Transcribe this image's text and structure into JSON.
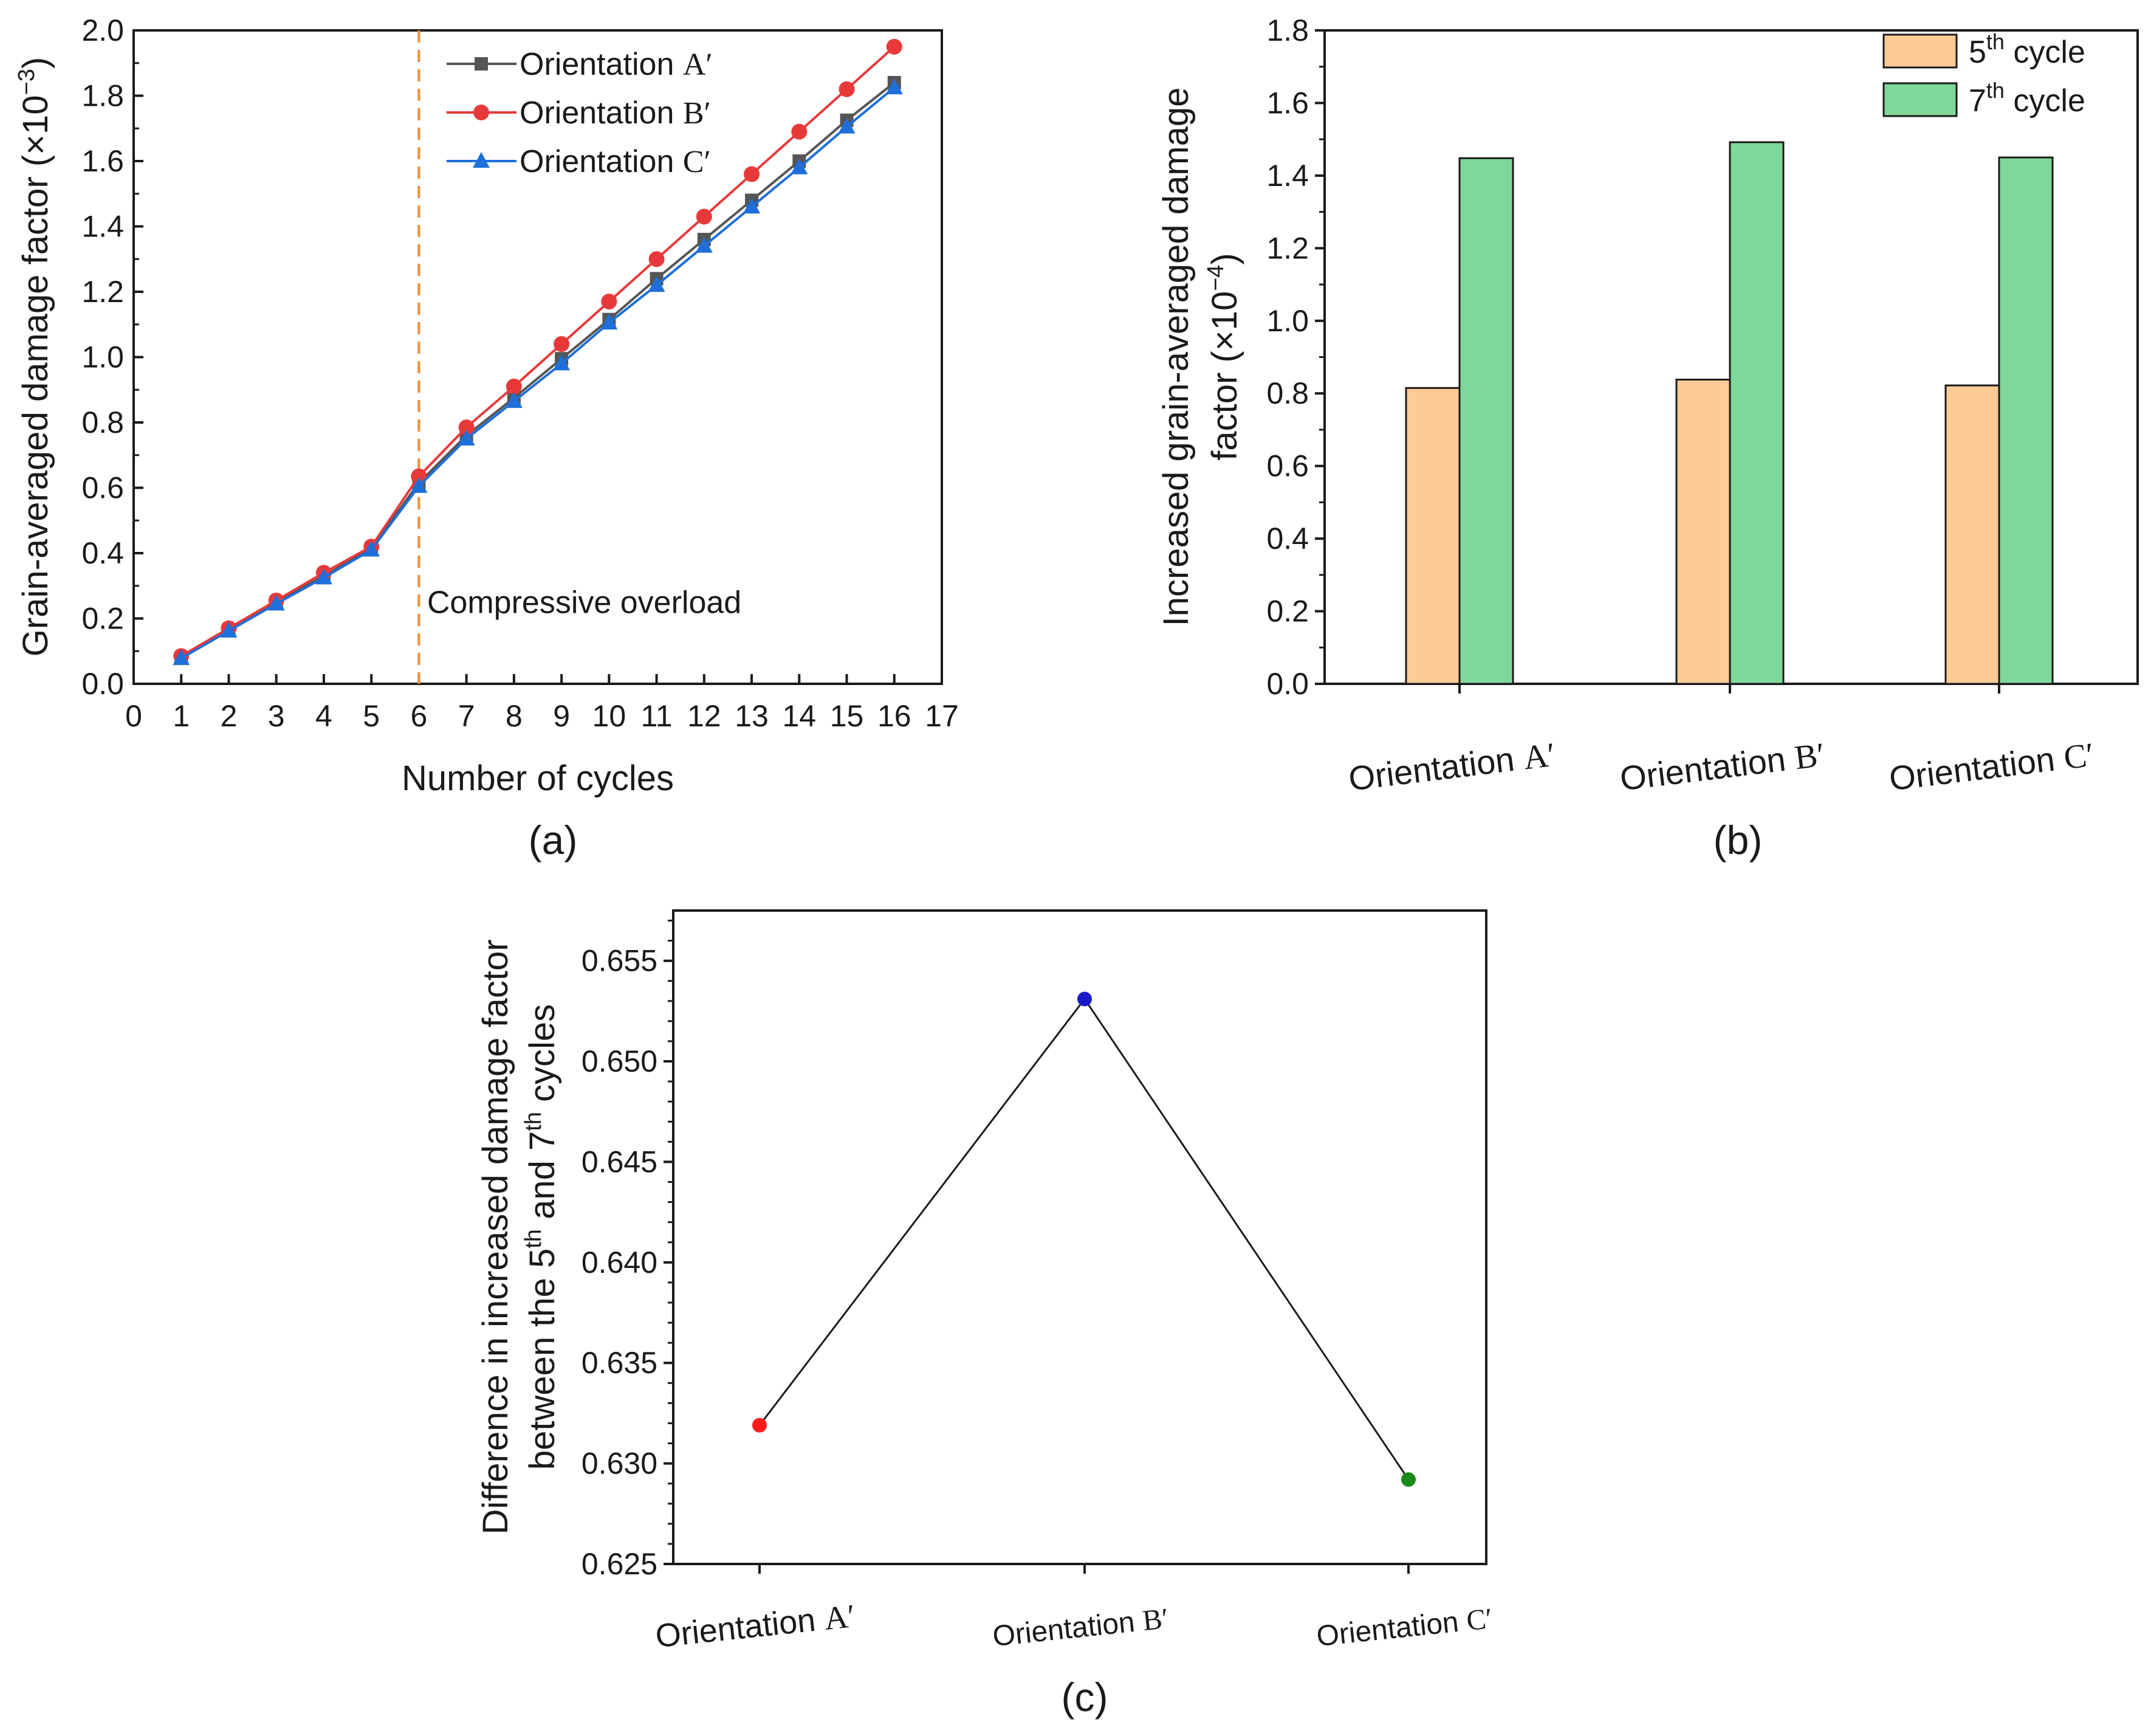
{
  "panels": {
    "a": {
      "label": "(a)"
    },
    "b": {
      "label": "(b)"
    },
    "c": {
      "label": "(c)"
    }
  },
  "chart_data": [
    {
      "id": "a",
      "type": "line",
      "ylabel": "Grain-averaged damage factor (×10",
      "ylabel_exp": "−3",
      "ylabel_close": ")",
      "xlabel": "Number of cycles",
      "xlim": [
        0,
        17
      ],
      "ylim": [
        0,
        2.0
      ],
      "x_ticks": [
        "0",
        "1",
        "2",
        "3",
        "4",
        "5",
        "6",
        "7",
        "8",
        "9",
        "10",
        "11",
        "12",
        "13",
        "14",
        "15",
        "16",
        "17"
      ],
      "y_ticks": [
        "0.0",
        "0.2",
        "0.4",
        "0.6",
        "0.8",
        "1.0",
        "1.2",
        "1.4",
        "1.6",
        "1.8",
        "2.0"
      ],
      "x": [
        1,
        2,
        3,
        4,
        5,
        6,
        7,
        8,
        9,
        10,
        11,
        12,
        13,
        14,
        15,
        16
      ],
      "series": [
        {
          "name_prefix": "Orientation ",
          "name_letter": "A′",
          "marker": "square",
          "color": "#555555",
          "values": [
            0.08,
            0.165,
            0.25,
            0.33,
            0.415,
            0.615,
            0.76,
            0.875,
            0.995,
            1.115,
            1.24,
            1.36,
            1.48,
            1.6,
            1.725,
            1.84
          ]
        },
        {
          "name_prefix": "Orientation ",
          "name_letter": "B′",
          "marker": "circle",
          "color": "#e8393a",
          "values": [
            0.085,
            0.17,
            0.255,
            0.34,
            0.42,
            0.635,
            0.785,
            0.91,
            1.04,
            1.17,
            1.3,
            1.43,
            1.56,
            1.69,
            1.82,
            1.95
          ]
        },
        {
          "name_prefix": "Orientation ",
          "name_letter": "C′",
          "marker": "triangle",
          "color": "#1e6fd9",
          "values": [
            0.078,
            0.162,
            0.245,
            0.325,
            0.41,
            0.605,
            0.75,
            0.865,
            0.98,
            1.105,
            1.22,
            1.34,
            1.46,
            1.58,
            1.705,
            1.825
          ]
        }
      ],
      "annotations": [
        {
          "type": "vline",
          "x": 6,
          "color": "#f08c2b",
          "style": "dashed"
        },
        {
          "type": "text",
          "text": "Compressive overload",
          "x": 6.3,
          "y": 0.25
        }
      ],
      "legend": "top-center",
      "grid": false
    },
    {
      "id": "b",
      "type": "bar",
      "ylabel_line1": "Increased grain-averaged damage",
      "ylabel_line2": "factor (×10",
      "ylabel_exp": "−4",
      "ylabel_close": ")",
      "categories": [
        {
          "prefix": "Orientation ",
          "letter": "A′"
        },
        {
          "prefix": "Orientation ",
          "letter": "B′"
        },
        {
          "prefix": "Orientation ",
          "letter": "C′"
        }
      ],
      "ylim": [
        0,
        1.8
      ],
      "y_ticks": [
        "0.0",
        "0.2",
        "0.4",
        "0.6",
        "0.8",
        "1.0",
        "1.2",
        "1.4",
        "1.6",
        "1.8"
      ],
      "series": [
        {
          "name_num": "5",
          "name_sup": "th",
          "name_rest": " cycle",
          "color": "#fdcb95",
          "values": [
            0.815,
            0.838,
            0.822
          ]
        },
        {
          "name_num": "7",
          "name_sup": "th",
          "name_rest": " cycle",
          "color": "#7fd89a",
          "values": [
            1.448,
            1.492,
            1.45
          ]
        }
      ],
      "legend": "top-right",
      "grid": false
    },
    {
      "id": "c",
      "type": "line",
      "ylabel_line1": "Difference in increased damage factor",
      "ylabel_line2_pre": "between the 5",
      "ylabel_line2_sup1": "th",
      "ylabel_line2_mid": " and 7",
      "ylabel_line2_sup2": "th",
      "ylabel_line2_post": " cycles",
      "categories": [
        {
          "prefix": "Orientation ",
          "letter": "A′"
        },
        {
          "prefix": "Orientation ",
          "letter": "B′"
        },
        {
          "prefix": "Orientation ",
          "letter": "C′"
        }
      ],
      "values": [
        0.6319,
        0.6531,
        0.6292
      ],
      "point_colors": [
        "#ff1a1a",
        "#1a1acc",
        "#1a8a1a"
      ],
      "ylim": [
        0.625,
        0.6575
      ],
      "y_ticks": [
        "0.625",
        "0.630",
        "0.635",
        "0.640",
        "0.645",
        "0.650",
        "0.655"
      ],
      "grid": false
    }
  ]
}
